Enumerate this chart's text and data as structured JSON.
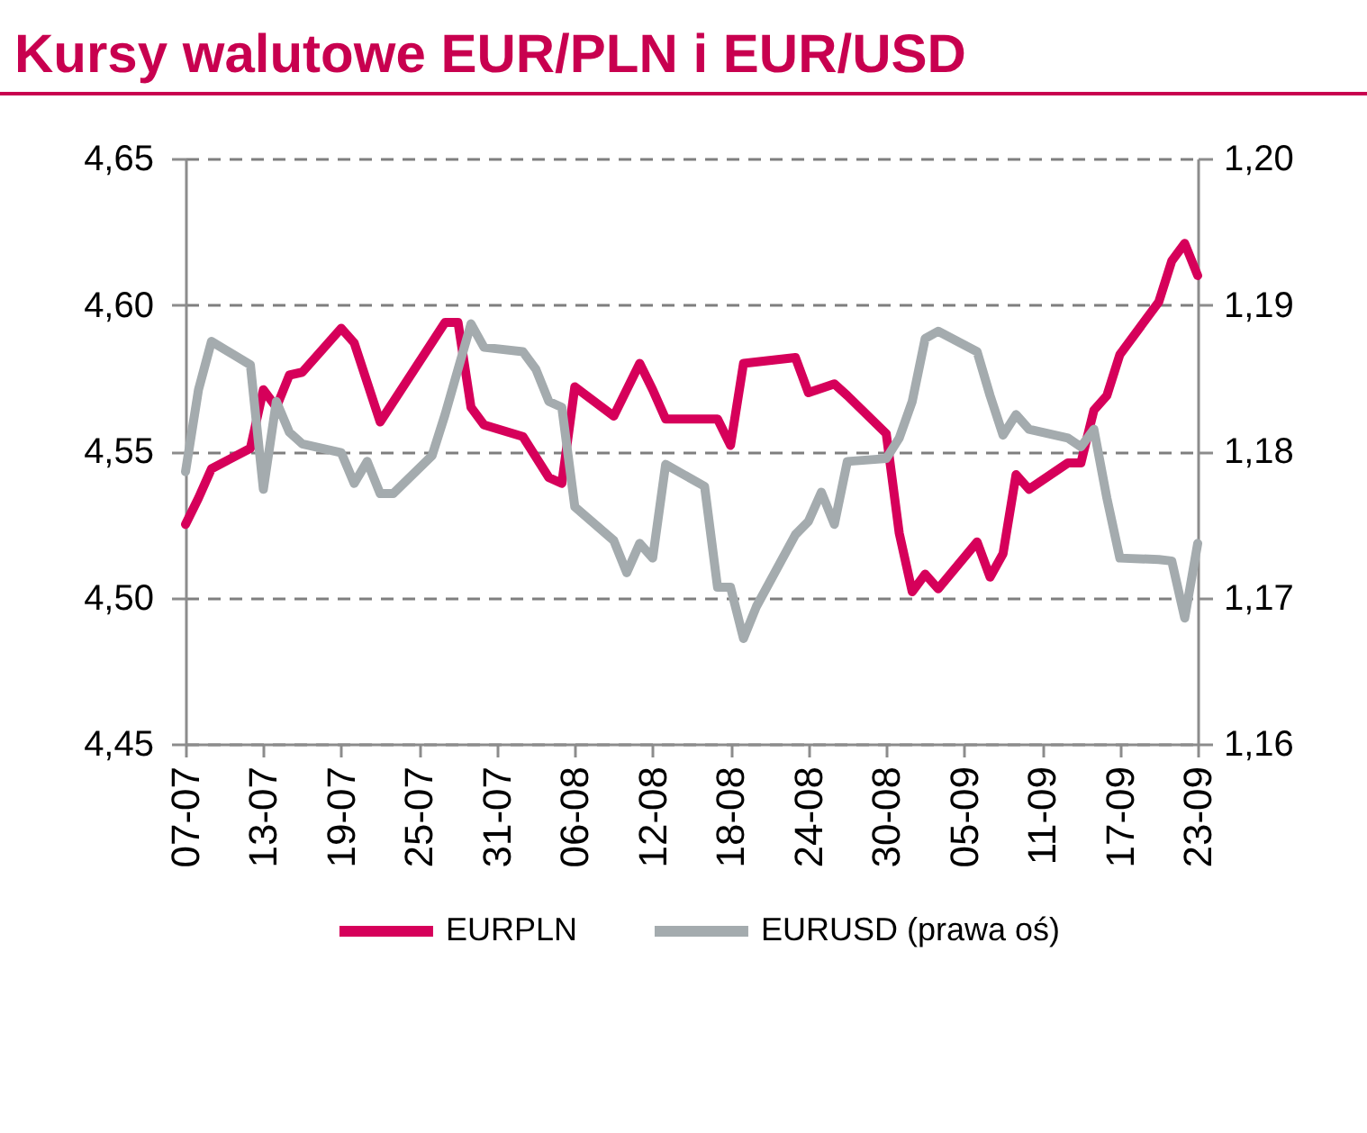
{
  "chart_data": {
    "type": "line",
    "title": "Kursy walutowe EUR/PLN i EUR/USD",
    "xlim": [
      "--07-07",
      "--09-23"
    ],
    "xticks": [
      {
        "value": "--07-07",
        "label": "07-07"
      },
      {
        "value": "--07-13",
        "label": "13-07"
      },
      {
        "value": "--07-19",
        "label": "19-07"
      },
      {
        "value": "--07-25",
        "label": "25-07"
      },
      {
        "value": "--07-31",
        "label": "31-07"
      },
      {
        "value": "--08-06",
        "label": "06-08"
      },
      {
        "value": "--08-12",
        "label": "12-08"
      },
      {
        "value": "--08-18",
        "label": "18-08"
      },
      {
        "value": "--08-24",
        "label": "24-08"
      },
      {
        "value": "--08-30",
        "label": "30-08"
      },
      {
        "value": "--09-05",
        "label": "05-09"
      },
      {
        "value": "--09-11",
        "label": "11-09"
      },
      {
        "value": "--09-17",
        "label": "17-09"
      },
      {
        "value": "--09-23",
        "label": "23-09"
      }
    ],
    "ylim": [
      4.45,
      4.65
    ],
    "yticks": [
      {
        "value": 4.45,
        "label": "4,45"
      },
      {
        "value": 4.5,
        "label": "4,50"
      },
      {
        "value": 4.55,
        "label": "4,55"
      },
      {
        "value": 4.6,
        "label": "4,60"
      },
      {
        "value": 4.65,
        "label": "4,65"
      }
    ],
    "y2lim": [
      1.16,
      1.2
    ],
    "y2ticks": [
      {
        "value": 1.16,
        "label": "1,16"
      },
      {
        "value": 1.17,
        "label": "1,17"
      },
      {
        "value": 1.18,
        "label": "1,18"
      },
      {
        "value": 1.19,
        "label": "1,19"
      },
      {
        "value": 1.2,
        "label": "1,20"
      }
    ],
    "grid": "y",
    "legend": "bottom",
    "line_style": "solid",
    "series": [
      {
        "name": "EURPLN",
        "color": "#d6005a",
        "x": [
          "--07-07",
          "--07-08",
          "--07-09",
          "--07-12",
          "--07-13",
          "--07-14",
          "--07-15",
          "--07-16",
          "--07-19",
          "--07-20",
          "--07-22",
          "--07-27",
          "--07-28",
          "--07-29",
          "--07-30",
          "--08-02",
          "--08-04",
          "--08-05",
          "--08-06",
          "--08-09",
          "--08-11",
          "--08-12",
          "--08-13",
          "--08-17",
          "--08-18",
          "--08-19",
          "--08-23",
          "--08-24",
          "--08-26",
          "--08-27",
          "--08-30",
          "--08-31",
          "--09-01",
          "--09-02",
          "--09-03",
          "--09-06",
          "--09-07",
          "--09-08",
          "--09-09",
          "--09-10",
          "--09-13",
          "--09-14",
          "--09-15",
          "--09-16",
          "--09-17",
          "--09-20",
          "--09-21",
          "--09-22",
          "--09-23"
        ],
        "values": [
          4.525,
          4.534,
          4.544,
          4.551,
          4.571,
          4.565,
          4.576,
          4.577,
          4.592,
          4.587,
          4.56,
          4.594,
          4.594,
          4.565,
          4.559,
          4.555,
          4.541,
          4.539,
          4.572,
          4.562,
          4.58,
          4.571,
          4.561,
          4.561,
          4.552,
          4.58,
          4.582,
          4.57,
          4.573,
          4.569,
          4.556,
          4.522,
          4.502,
          4.508,
          4.503,
          4.519,
          4.507,
          4.515,
          4.542,
          4.537,
          4.546,
          4.546,
          4.564,
          4.569,
          4.583,
          4.601,
          4.615,
          4.621,
          4.61
        ]
      },
      {
        "name": "EURUSD (prawa oś)",
        "color": "#a4abae",
        "axis": "y2",
        "x": [
          "--07-07",
          "--07-08",
          "--07-09",
          "--07-12",
          "--07-13",
          "--07-14",
          "--07-15",
          "--07-16",
          "--07-19",
          "--07-20",
          "--07-21",
          "--07-22",
          "--07-23",
          "--07-26",
          "--07-27",
          "--07-29",
          "--07-30",
          "--08-02",
          "--08-03",
          "--08-04",
          "--08-05",
          "--08-06",
          "--08-09",
          "--08-10",
          "--08-11",
          "--08-12",
          "--08-13",
          "--08-16",
          "--08-17",
          "--08-18",
          "--08-19",
          "--08-20",
          "--08-23",
          "--08-24",
          "--08-25",
          "--08-26",
          "--08-27",
          "--08-30",
          "--08-31",
          "--09-01",
          "--09-02",
          "--09-03",
          "--09-06",
          "--09-07",
          "--09-08",
          "--09-09",
          "--09-10",
          "--09-13",
          "--09-14",
          "--09-15",
          "--09-16",
          "--09-17",
          "--09-20",
          "--09-21",
          "--09-22",
          "--09-23"
        ],
        "values": [
          1.1786,
          1.1842,
          1.1875,
          1.1859,
          1.1774,
          1.1834,
          1.1813,
          1.1805,
          1.1799,
          1.1778,
          1.1793,
          1.1771,
          1.1771,
          1.1797,
          1.1825,
          1.1887,
          1.1871,
          1.1868,
          1.1856,
          1.1834,
          1.183,
          1.1762,
          1.1739,
          1.1717,
          1.1737,
          1.1727,
          1.1791,
          1.1776,
          1.1707,
          1.1707,
          1.1672,
          1.1694,
          1.1743,
          1.1752,
          1.1772,
          1.175,
          1.1793,
          1.1795,
          1.1809,
          1.1834,
          1.1877,
          1.1882,
          1.1868,
          1.1838,
          1.1811,
          1.1825,
          1.1815,
          1.1809,
          1.1803,
          1.1815,
          1.1768,
          1.1727,
          1.1726,
          1.1725,
          1.1686,
          1.1737
        ]
      }
    ]
  }
}
